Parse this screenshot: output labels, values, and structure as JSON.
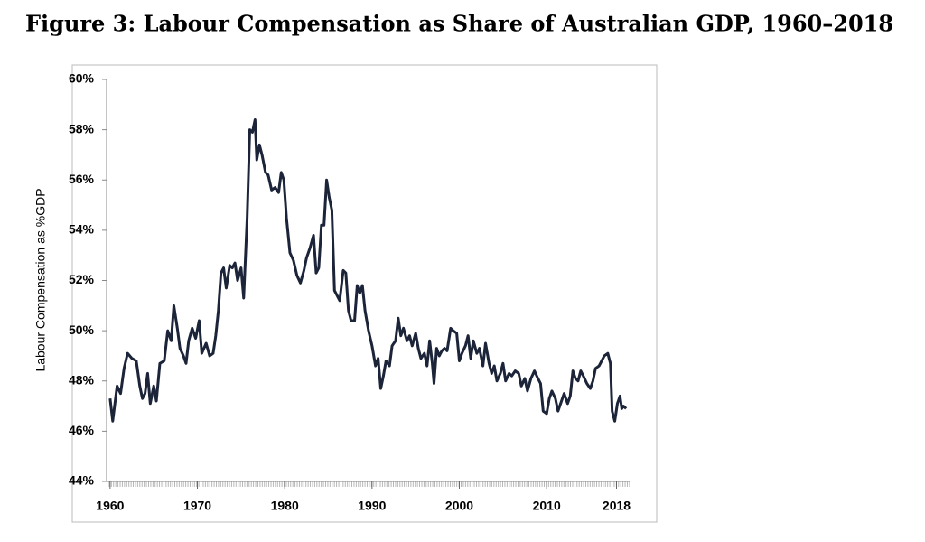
{
  "chart_data": {
    "type": "line",
    "title": "Figure 3: Labour Compensation as Share of Australian GDP, 1960–2018",
    "y_label": "Labour Compensation as %GDP",
    "x": [
      1960.0,
      1960.3,
      1960.8,
      1961.2,
      1961.6,
      1962.0,
      1962.5,
      1963.0,
      1963.4,
      1963.7,
      1964.0,
      1964.3,
      1964.6,
      1965.0,
      1965.3,
      1965.7,
      1966.2,
      1966.6,
      1967.0,
      1967.3,
      1967.7,
      1968.0,
      1968.4,
      1968.7,
      1969.0,
      1969.4,
      1969.8,
      1970.2,
      1970.5,
      1971.0,
      1971.4,
      1971.8,
      1972.1,
      1972.4,
      1972.7,
      1973.0,
      1973.3,
      1973.7,
      1974.0,
      1974.3,
      1974.6,
      1975.0,
      1975.3,
      1975.7,
      1976.0,
      1976.3,
      1976.6,
      1976.8,
      1977.1,
      1977.4,
      1977.8,
      1978.1,
      1978.5,
      1978.9,
      1979.3,
      1979.6,
      1979.9,
      1980.2,
      1980.6,
      1981.0,
      1981.4,
      1981.8,
      1982.2,
      1982.5,
      1982.9,
      1983.3,
      1983.6,
      1983.9,
      1984.2,
      1984.5,
      1984.8,
      1985.1,
      1985.4,
      1985.7,
      1986.0,
      1986.3,
      1986.7,
      1987.0,
      1987.3,
      1987.6,
      1988.0,
      1988.3,
      1988.6,
      1988.9,
      1989.2,
      1989.6,
      1990.0,
      1990.4,
      1990.7,
      1991.0,
      1991.3,
      1991.6,
      1992.0,
      1992.3,
      1992.7,
      1993.0,
      1993.3,
      1993.6,
      1994.0,
      1994.3,
      1994.6,
      1995.0,
      1995.3,
      1995.6,
      1996.0,
      1996.3,
      1996.6,
      1996.9,
      1997.1,
      1997.4,
      1997.7,
      1998.0,
      1998.3,
      1998.6,
      1999.0,
      1999.3,
      1999.7,
      2000.0,
      2000.3,
      2000.7,
      2001.0,
      2001.3,
      2001.6,
      2002.0,
      2002.3,
      2002.7,
      2003.0,
      2003.4,
      2003.7,
      2004.0,
      2004.3,
      2004.7,
      2005.0,
      2005.3,
      2005.7,
      2006.0,
      2006.4,
      2006.8,
      2007.1,
      2007.5,
      2007.8,
      2008.2,
      2008.6,
      2009.0,
      2009.3,
      2009.6,
      2010.0,
      2010.3,
      2010.6,
      2011.0,
      2011.3,
      2011.6,
      2012.0,
      2012.4,
      2012.7,
      2013.0,
      2013.3,
      2013.6,
      2013.9,
      2014.2,
      2014.6,
      2015.0,
      2015.3,
      2015.6,
      2016.0,
      2016.3,
      2016.6,
      2017.0,
      2017.3,
      2017.5,
      2017.8,
      2018.1,
      2018.4,
      2018.6,
      2018.8,
      2019.1
    ],
    "series": [
      {
        "color": "#1b2438",
        "values": [
          47.3,
          46.4,
          47.8,
          47.5,
          48.5,
          49.1,
          48.9,
          48.8,
          47.8,
          47.3,
          47.5,
          48.3,
          47.1,
          47.8,
          47.2,
          48.7,
          48.8,
          50.0,
          49.6,
          51.0,
          50.1,
          49.3,
          49.0,
          48.7,
          49.6,
          50.1,
          49.7,
          50.4,
          49.1,
          49.5,
          49.0,
          49.1,
          49.8,
          50.8,
          52.3,
          52.5,
          51.7,
          52.6,
          52.5,
          52.7,
          52.0,
          52.5,
          51.3,
          54.5,
          58.0,
          57.9,
          58.4,
          56.8,
          57.4,
          57.0,
          56.3,
          56.2,
          55.6,
          55.7,
          55.5,
          56.3,
          56.0,
          54.5,
          53.1,
          52.8,
          52.2,
          51.9,
          52.4,
          52.9,
          53.3,
          53.8,
          52.3,
          52.5,
          54.2,
          54.2,
          56.0,
          55.3,
          54.8,
          51.6,
          51.4,
          51.2,
          52.4,
          52.3,
          50.8,
          50.4,
          50.4,
          51.8,
          51.5,
          51.8,
          50.8,
          50.0,
          49.4,
          48.6,
          48.9,
          47.7,
          48.2,
          48.8,
          48.6,
          49.4,
          49.6,
          50.5,
          49.8,
          50.1,
          49.6,
          49.8,
          49.4,
          49.9,
          49.3,
          48.9,
          49.1,
          48.6,
          49.6,
          48.7,
          47.9,
          49.3,
          49.0,
          49.2,
          49.3,
          49.2,
          50.1,
          50.0,
          49.9,
          48.8,
          49.1,
          49.4,
          49.8,
          48.9,
          49.6,
          49.1,
          49.3,
          48.6,
          49.5,
          48.7,
          48.3,
          48.6,
          48.0,
          48.3,
          48.7,
          48.0,
          48.3,
          48.2,
          48.4,
          48.3,
          47.8,
          48.1,
          47.6,
          48.1,
          48.4,
          48.1,
          47.9,
          46.8,
          46.7,
          47.3,
          47.6,
          47.3,
          46.8,
          47.1,
          47.5,
          47.1,
          47.4,
          48.4,
          48.1,
          48.0,
          48.4,
          48.2,
          47.9,
          47.7,
          48.0,
          48.5,
          48.6,
          48.8,
          49.0,
          49.1,
          48.7,
          46.8,
          46.4,
          47.1,
          47.4,
          46.9,
          47.0,
          46.9
        ]
      }
    ],
    "xlim": [
      1959.6,
      2019.5
    ],
    "xticks": [
      1960,
      1970,
      1980,
      1990,
      2000,
      2010,
      2018
    ],
    "ylim": [
      44,
      60
    ],
    "yticks": [
      {
        "value": 44,
        "label": "44%"
      },
      {
        "value": 46,
        "label": "46%"
      },
      {
        "value": 48,
        "label": "48%"
      },
      {
        "value": 50,
        "label": "50%"
      },
      {
        "value": 52,
        "label": "52%"
      },
      {
        "value": 54,
        "label": "54%"
      },
      {
        "value": 56,
        "label": "56%"
      },
      {
        "value": 58,
        "label": "58%"
      },
      {
        "value": 60,
        "label": "60%"
      }
    ],
    "grid": false
  }
}
